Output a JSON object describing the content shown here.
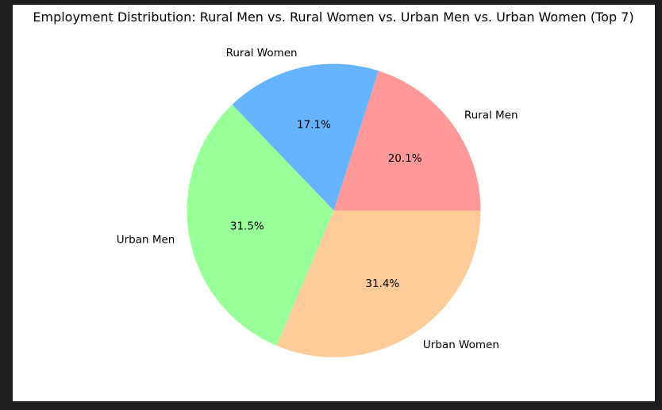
{
  "chart_data": {
    "type": "pie",
    "title": "Employment Distribution: Rural Men vs. Rural Women vs. Urban Men vs. Urban Women (Top 7)",
    "start_angle_deg": 0,
    "direction": "counterclockwise",
    "slices": [
      {
        "label": "Rural Men",
        "value": 20.1,
        "pct_label": "20.1%",
        "color": "#ff9999"
      },
      {
        "label": "Rural Women",
        "value": 17.1,
        "pct_label": "17.1%",
        "color": "#66b3ff"
      },
      {
        "label": "Urban Men",
        "value": 31.5,
        "pct_label": "31.5%",
        "color": "#99ff99"
      },
      {
        "label": "Urban Women",
        "value": 31.4,
        "pct_label": "31.4%",
        "color": "#ffcc99"
      }
    ]
  }
}
